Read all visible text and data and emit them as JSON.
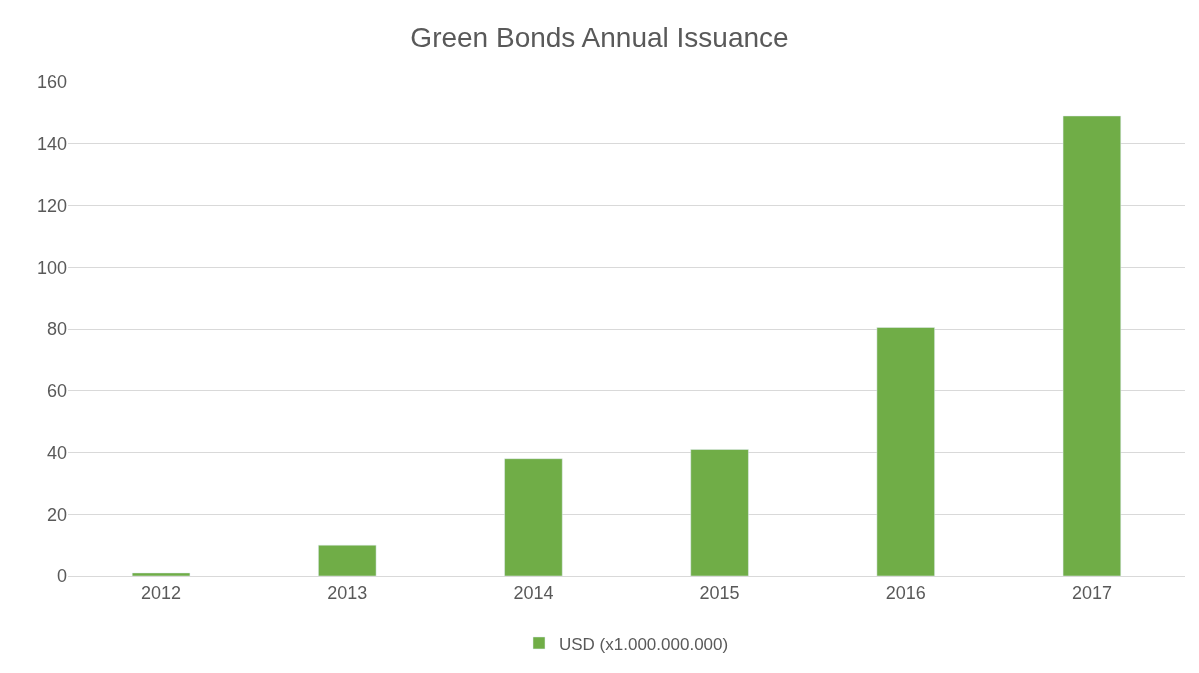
{
  "chart_data": {
    "type": "bar",
    "title": "Green Bonds Annual Issuance",
    "categories": [
      "2012",
      "2013",
      "2014",
      "2015",
      "2016",
      "2017"
    ],
    "series": [
      {
        "name": "USD (x1.000.000.000)",
        "color": "#70ad47",
        "values": [
          1,
          10,
          38,
          41,
          80.5,
          149
        ]
      }
    ],
    "ylim": [
      0,
      160
    ],
    "yticks": [
      0,
      20,
      40,
      60,
      80,
      100,
      120,
      140,
      160
    ],
    "grid": "y",
    "legend": "bottom"
  }
}
